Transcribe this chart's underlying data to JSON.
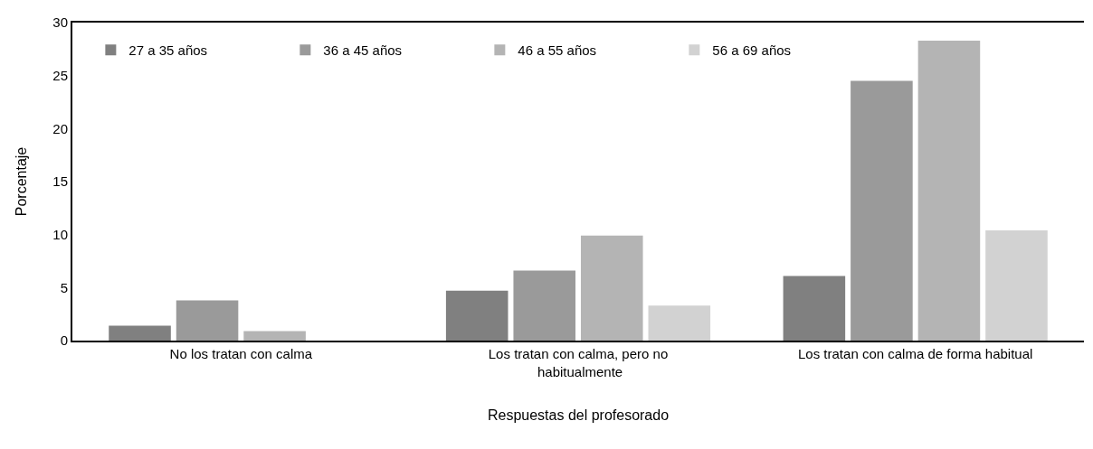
{
  "chart_data": {
    "type": "bar",
    "xlabel": "Respuestas del profesorado",
    "ylabel": "Porcentaje",
    "categories": [
      "No los tratan con calma",
      "Los tratan con calma, pero no habitualmente",
      "Los tratan con calma de forma habitual"
    ],
    "series": [
      {
        "name": "27 a 35 años",
        "color": "#808080",
        "values": [
          1.4,
          4.7,
          6.1
        ]
      },
      {
        "name": "36 a 45 años",
        "color": "#9a9a9a",
        "values": [
          3.8,
          6.6,
          24.5
        ]
      },
      {
        "name": "46 a 55 años",
        "color": "#b4b4b4",
        "values": [
          0.9,
          9.9,
          28.3
        ]
      },
      {
        "name": "56 a 69 años",
        "color": "#d2d2d2",
        "values": [
          0,
          3.3,
          10.4
        ]
      }
    ],
    "ylim": [
      0,
      30
    ],
    "yticks": [
      0,
      5,
      10,
      15,
      20,
      25,
      30
    ],
    "grid": false,
    "legend": "top left"
  }
}
